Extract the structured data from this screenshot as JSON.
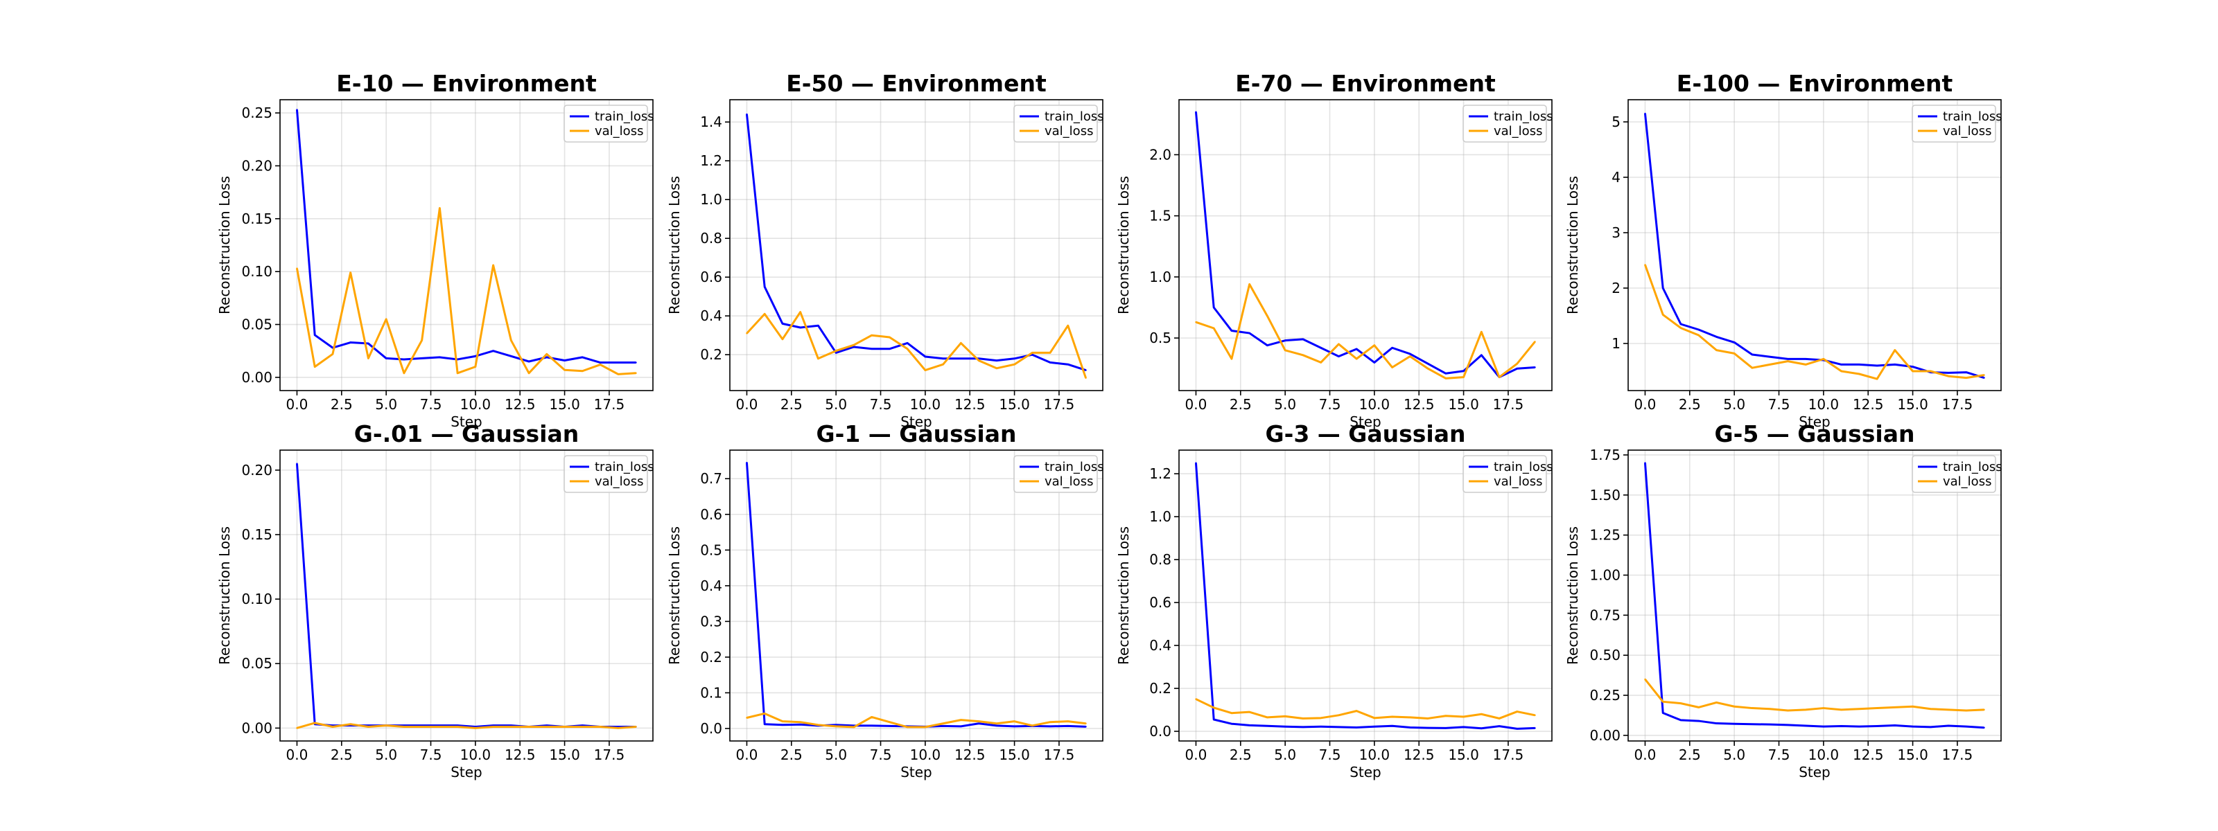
{
  "chart_data": [
    {
      "type": "line",
      "title": "E-10 — Environment",
      "xlabel": "Step",
      "ylabel": "Reconstruction Loss",
      "xlim": [
        -0.95,
        19.95
      ],
      "ylim": [
        -0.0125,
        0.2625
      ],
      "xticks": [
        0,
        2.5,
        5,
        7.5,
        10,
        12.5,
        15,
        17.5
      ],
      "xtick_labels": [
        "0.0",
        "2.5",
        "5.0",
        "7.5",
        "10.0",
        "12.5",
        "15.0",
        "17.5"
      ],
      "yticks": [
        0,
        0.05,
        0.1,
        0.15,
        0.2,
        0.25
      ],
      "ytick_labels": [
        "0.00",
        "0.05",
        "0.10",
        "0.15",
        "0.20",
        "0.25"
      ],
      "grid": true,
      "legend": "top-right",
      "series": [
        {
          "name": "train_loss",
          "color": "#0000ff",
          "x": [
            0,
            1,
            2,
            3,
            4,
            5,
            6,
            7,
            8,
            9,
            10,
            11,
            12,
            13,
            14,
            15,
            16,
            17,
            18,
            19
          ],
          "values": [
            0.253,
            0.04,
            0.028,
            0.033,
            0.032,
            0.018,
            0.017,
            0.018,
            0.019,
            0.017,
            0.02,
            0.025,
            0.02,
            0.015,
            0.019,
            0.016,
            0.019,
            0.014,
            0.014,
            0.014
          ]
        },
        {
          "name": "val_loss",
          "color": "#ffa500",
          "x": [
            0,
            1,
            2,
            3,
            4,
            5,
            6,
            7,
            8,
            9,
            10,
            11,
            12,
            13,
            14,
            15,
            16,
            17,
            18,
            19
          ],
          "values": [
            0.103,
            0.01,
            0.022,
            0.099,
            0.018,
            0.055,
            0.004,
            0.035,
            0.16,
            0.004,
            0.01,
            0.106,
            0.035,
            0.004,
            0.022,
            0.007,
            0.006,
            0.012,
            0.003,
            0.004
          ]
        }
      ]
    },
    {
      "type": "line",
      "title": "E-50 — Environment",
      "xlabel": "Step",
      "ylabel": "Reconstruction Loss",
      "xlim": [
        -0.95,
        19.95
      ],
      "ylim": [
        0.015,
        1.515
      ],
      "xticks": [
        0,
        2.5,
        5,
        7.5,
        10,
        12.5,
        15,
        17.5
      ],
      "xtick_labels": [
        "0.0",
        "2.5",
        "5.0",
        "7.5",
        "10.0",
        "12.5",
        "15.0",
        "17.5"
      ],
      "yticks": [
        0.2,
        0.4,
        0.6,
        0.8,
        1.0,
        1.2,
        1.4
      ],
      "ytick_labels": [
        "0.2",
        "0.4",
        "0.6",
        "0.8",
        "1.0",
        "1.2",
        "1.4"
      ],
      "grid": true,
      "legend": "top-right",
      "series": [
        {
          "name": "train_loss",
          "color": "#0000ff",
          "x": [
            0,
            1,
            2,
            3,
            4,
            5,
            6,
            7,
            8,
            9,
            10,
            11,
            12,
            13,
            14,
            15,
            16,
            17,
            18,
            19
          ],
          "values": [
            1.44,
            0.55,
            0.36,
            0.34,
            0.35,
            0.21,
            0.24,
            0.23,
            0.23,
            0.26,
            0.19,
            0.18,
            0.18,
            0.18,
            0.17,
            0.18,
            0.2,
            0.16,
            0.15,
            0.12
          ]
        },
        {
          "name": "val_loss",
          "color": "#ffa500",
          "x": [
            0,
            1,
            2,
            3,
            4,
            5,
            6,
            7,
            8,
            9,
            10,
            11,
            12,
            13,
            14,
            15,
            16,
            17,
            18,
            19
          ],
          "values": [
            0.31,
            0.41,
            0.28,
            0.42,
            0.18,
            0.22,
            0.25,
            0.3,
            0.29,
            0.23,
            0.12,
            0.15,
            0.26,
            0.17,
            0.13,
            0.15,
            0.21,
            0.21,
            0.35,
            0.08
          ]
        }
      ]
    },
    {
      "type": "line",
      "title": "E-70 — Environment",
      "xlabel": "Step",
      "ylabel": "Reconstruction Loss",
      "xlim": [
        -0.95,
        19.95
      ],
      "ylim": [
        0.07,
        2.45
      ],
      "xticks": [
        0,
        2.5,
        5,
        7.5,
        10,
        12.5,
        15,
        17.5
      ],
      "xtick_labels": [
        "0.0",
        "2.5",
        "5.0",
        "7.5",
        "10.0",
        "12.5",
        "15.0",
        "17.5"
      ],
      "yticks": [
        0.5,
        1.0,
        1.5,
        2.0
      ],
      "ytick_labels": [
        "0.5",
        "1.0",
        "1.5",
        "2.0"
      ],
      "grid": true,
      "legend": "top-right",
      "series": [
        {
          "name": "train_loss",
          "color": "#0000ff",
          "x": [
            0,
            1,
            2,
            3,
            4,
            5,
            6,
            7,
            8,
            9,
            10,
            11,
            12,
            13,
            14,
            15,
            16,
            17,
            18,
            19
          ],
          "values": [
            2.35,
            0.75,
            0.56,
            0.54,
            0.44,
            0.48,
            0.49,
            0.42,
            0.35,
            0.41,
            0.3,
            0.42,
            0.37,
            0.29,
            0.21,
            0.23,
            0.36,
            0.18,
            0.25,
            0.26
          ]
        },
        {
          "name": "val_loss",
          "color": "#ffa500",
          "x": [
            0,
            1,
            2,
            3,
            4,
            5,
            6,
            7,
            8,
            9,
            10,
            11,
            12,
            13,
            14,
            15,
            16,
            17,
            18,
            19
          ],
          "values": [
            0.63,
            0.58,
            0.33,
            0.94,
            0.68,
            0.4,
            0.36,
            0.3,
            0.45,
            0.33,
            0.44,
            0.26,
            0.35,
            0.25,
            0.17,
            0.18,
            0.55,
            0.18,
            0.29,
            0.47
          ]
        }
      ]
    },
    {
      "type": "line",
      "title": "E-100 — Environment",
      "xlabel": "Step",
      "ylabel": "Reconstruction Loss",
      "xlim": [
        -0.95,
        19.95
      ],
      "ylim": [
        0.15,
        5.4
      ],
      "xticks": [
        0,
        2.5,
        5,
        7.5,
        10,
        12.5,
        15,
        17.5
      ],
      "xtick_labels": [
        "0.0",
        "2.5",
        "5.0",
        "7.5",
        "10.0",
        "12.5",
        "15.0",
        "17.5"
      ],
      "yticks": [
        1,
        2,
        3,
        4,
        5
      ],
      "ytick_labels": [
        "1",
        "2",
        "3",
        "4",
        "5"
      ],
      "grid": true,
      "legend": "top-right",
      "series": [
        {
          "name": "train_loss",
          "color": "#0000ff",
          "x": [
            0,
            1,
            2,
            3,
            4,
            5,
            6,
            7,
            8,
            9,
            10,
            11,
            12,
            13,
            14,
            15,
            16,
            17,
            18,
            19
          ],
          "values": [
            5.15,
            2.0,
            1.35,
            1.25,
            1.12,
            1.02,
            0.8,
            0.76,
            0.72,
            0.72,
            0.7,
            0.62,
            0.62,
            0.6,
            0.62,
            0.58,
            0.48,
            0.47,
            0.48,
            0.38
          ]
        },
        {
          "name": "val_loss",
          "color": "#ffa500",
          "x": [
            0,
            1,
            2,
            3,
            4,
            5,
            6,
            7,
            8,
            9,
            10,
            11,
            12,
            13,
            14,
            15,
            16,
            17,
            18,
            19
          ],
          "values": [
            2.42,
            1.52,
            1.28,
            1.15,
            0.88,
            0.82,
            0.56,
            0.62,
            0.68,
            0.62,
            0.72,
            0.5,
            0.45,
            0.36,
            0.88,
            0.5,
            0.5,
            0.41,
            0.38,
            0.43
          ]
        }
      ]
    },
    {
      "type": "line",
      "title": "G-.01 — Gaussian",
      "xlabel": "Step",
      "ylabel": "Reconstruction Loss",
      "xlim": [
        -0.95,
        19.95
      ],
      "ylim": [
        -0.01,
        0.2155
      ],
      "xticks": [
        0,
        2.5,
        5,
        7.5,
        10,
        12.5,
        15,
        17.5
      ],
      "xtick_labels": [
        "0.0",
        "2.5",
        "5.0",
        "7.5",
        "10.0",
        "12.5",
        "15.0",
        "17.5"
      ],
      "yticks": [
        0,
        0.05,
        0.1,
        0.15,
        0.2
      ],
      "ytick_labels": [
        "0.00",
        "0.05",
        "0.10",
        "0.15",
        "0.20"
      ],
      "grid": true,
      "legend": "top-right",
      "series": [
        {
          "name": "train_loss",
          "color": "#0000ff",
          "x": [
            0,
            1,
            2,
            3,
            4,
            5,
            6,
            7,
            8,
            9,
            10,
            11,
            12,
            13,
            14,
            15,
            16,
            17,
            18,
            19
          ],
          "values": [
            0.205,
            0.003,
            0.002,
            0.002,
            0.002,
            0.002,
            0.002,
            0.002,
            0.002,
            0.002,
            0.001,
            0.002,
            0.002,
            0.001,
            0.002,
            0.001,
            0.002,
            0.001,
            0.001,
            0.001
          ]
        },
        {
          "name": "val_loss",
          "color": "#ffa500",
          "x": [
            0,
            1,
            2,
            3,
            4,
            5,
            6,
            7,
            8,
            9,
            10,
            11,
            12,
            13,
            14,
            15,
            16,
            17,
            18,
            19
          ],
          "values": [
            0.0,
            0.004,
            0.001,
            0.003,
            0.001,
            0.002,
            0.001,
            0.001,
            0.001,
            0.001,
            0.0,
            0.001,
            0.001,
            0.001,
            0.001,
            0.001,
            0.001,
            0.001,
            0.0,
            0.001
          ]
        }
      ]
    },
    {
      "type": "line",
      "title": "G-1 — Gaussian",
      "xlabel": "Step",
      "ylabel": "Reconstruction Loss",
      "xlim": [
        -0.95,
        19.95
      ],
      "ylim": [
        -0.035,
        0.78
      ],
      "xticks": [
        0,
        2.5,
        5,
        7.5,
        10,
        12.5,
        15,
        17.5
      ],
      "xtick_labels": [
        "0.0",
        "2.5",
        "5.0",
        "7.5",
        "10.0",
        "12.5",
        "15.0",
        "17.5"
      ],
      "yticks": [
        0,
        0.1,
        0.2,
        0.3,
        0.4,
        0.5,
        0.6,
        0.7
      ],
      "ytick_labels": [
        "0.0",
        "0.1",
        "0.2",
        "0.3",
        "0.4",
        "0.5",
        "0.6",
        "0.7"
      ],
      "grid": true,
      "legend": "top-right",
      "series": [
        {
          "name": "train_loss",
          "color": "#0000ff",
          "x": [
            0,
            1,
            2,
            3,
            4,
            5,
            6,
            7,
            8,
            9,
            10,
            11,
            12,
            13,
            14,
            15,
            16,
            17,
            18,
            19
          ],
          "values": [
            0.745,
            0.012,
            0.01,
            0.011,
            0.008,
            0.01,
            0.008,
            0.008,
            0.007,
            0.006,
            0.005,
            0.007,
            0.006,
            0.014,
            0.008,
            0.006,
            0.007,
            0.006,
            0.007,
            0.005
          ]
        },
        {
          "name": "val_loss",
          "color": "#ffa500",
          "x": [
            0,
            1,
            2,
            3,
            4,
            5,
            6,
            7,
            8,
            9,
            10,
            11,
            12,
            13,
            14,
            15,
            16,
            17,
            18,
            19
          ],
          "values": [
            0.03,
            0.042,
            0.02,
            0.018,
            0.01,
            0.006,
            0.004,
            0.032,
            0.018,
            0.004,
            0.004,
            0.014,
            0.024,
            0.02,
            0.014,
            0.02,
            0.008,
            0.018,
            0.02,
            0.014
          ]
        }
      ]
    },
    {
      "type": "line",
      "title": "G-3 — Gaussian",
      "xlabel": "Step",
      "ylabel": "Reconstruction Loss",
      "xlim": [
        -0.95,
        19.95
      ],
      "ylim": [
        -0.045,
        1.31
      ],
      "xticks": [
        0,
        2.5,
        5,
        7.5,
        10,
        12.5,
        15,
        17.5
      ],
      "xtick_labels": [
        "0.0",
        "2.5",
        "5.0",
        "7.5",
        "10.0",
        "12.5",
        "15.0",
        "17.5"
      ],
      "yticks": [
        0,
        0.2,
        0.4,
        0.6,
        0.8,
        1.0,
        1.2
      ],
      "ytick_labels": [
        "0.0",
        "0.2",
        "0.4",
        "0.6",
        "0.8",
        "1.0",
        "1.2"
      ],
      "grid": true,
      "legend": "top-right",
      "series": [
        {
          "name": "train_loss",
          "color": "#0000ff",
          "x": [
            0,
            1,
            2,
            3,
            4,
            5,
            6,
            7,
            8,
            9,
            10,
            11,
            12,
            13,
            14,
            15,
            16,
            17,
            18,
            19
          ],
          "values": [
            1.25,
            0.055,
            0.035,
            0.028,
            0.025,
            0.022,
            0.02,
            0.022,
            0.02,
            0.018,
            0.022,
            0.025,
            0.018,
            0.016,
            0.015,
            0.02,
            0.014,
            0.024,
            0.012,
            0.015
          ]
        },
        {
          "name": "val_loss",
          "color": "#ffa500",
          "x": [
            0,
            1,
            2,
            3,
            4,
            5,
            6,
            7,
            8,
            9,
            10,
            11,
            12,
            13,
            14,
            15,
            16,
            17,
            18,
            19
          ],
          "values": [
            0.15,
            0.11,
            0.085,
            0.09,
            0.065,
            0.07,
            0.06,
            0.062,
            0.075,
            0.095,
            0.062,
            0.068,
            0.065,
            0.06,
            0.072,
            0.068,
            0.08,
            0.06,
            0.092,
            0.075
          ]
        }
      ]
    },
    {
      "type": "line",
      "title": "G-5 — Gaussian",
      "xlabel": "Step",
      "ylabel": "Reconstruction Loss",
      "xlim": [
        -0.95,
        19.95
      ],
      "ylim": [
        -0.035,
        1.78
      ],
      "xticks": [
        0,
        2.5,
        5,
        7.5,
        10,
        12.5,
        15,
        17.5
      ],
      "xtick_labels": [
        "0.0",
        "2.5",
        "5.0",
        "7.5",
        "10.0",
        "12.5",
        "15.0",
        "17.5"
      ],
      "yticks": [
        0,
        0.25,
        0.5,
        0.75,
        1.0,
        1.25,
        1.5,
        1.75
      ],
      "ytick_labels": [
        "0.00",
        "0.25",
        "0.50",
        "0.75",
        "1.00",
        "1.25",
        "1.50",
        "1.75"
      ],
      "grid": true,
      "legend": "top-right",
      "series": [
        {
          "name": "train_loss",
          "color": "#0000ff",
          "x": [
            0,
            1,
            2,
            3,
            4,
            5,
            6,
            7,
            8,
            9,
            10,
            11,
            12,
            13,
            14,
            15,
            16,
            17,
            18,
            19
          ],
          "values": [
            1.7,
            0.14,
            0.095,
            0.09,
            0.075,
            0.072,
            0.07,
            0.068,
            0.065,
            0.06,
            0.055,
            0.058,
            0.055,
            0.058,
            0.062,
            0.055,
            0.052,
            0.06,
            0.055,
            0.048
          ]
        },
        {
          "name": "val_loss",
          "color": "#ffa500",
          "x": [
            0,
            1,
            2,
            3,
            4,
            5,
            6,
            7,
            8,
            9,
            10,
            11,
            12,
            13,
            14,
            15,
            16,
            17,
            18,
            19
          ],
          "values": [
            0.35,
            0.21,
            0.2,
            0.175,
            0.205,
            0.18,
            0.17,
            0.165,
            0.155,
            0.16,
            0.17,
            0.16,
            0.165,
            0.17,
            0.175,
            0.18,
            0.165,
            0.16,
            0.155,
            0.16
          ]
        }
      ]
    }
  ]
}
